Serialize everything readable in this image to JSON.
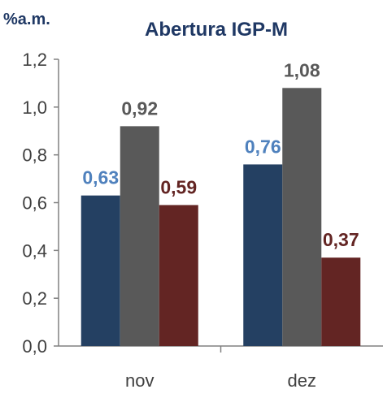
{
  "chart_data": {
    "type": "bar",
    "title": "Abertura IGP-M",
    "unit_label": "%a.m.",
    "categories": [
      "nov",
      "dez"
    ],
    "series": [
      {
        "values": [
          0.63,
          0.76
        ],
        "color": "#244062",
        "label_color": "#4f81bd"
      },
      {
        "values": [
          0.92,
          1.08
        ],
        "color": "#595959",
        "label_color": "#595959"
      },
      {
        "values": [
          0.59,
          0.37
        ],
        "color": "#632523",
        "label_color": "#632523"
      }
    ],
    "data_labels": [
      [
        "0,63",
        "0,92",
        "0,59"
      ],
      [
        "0,76",
        "1,08",
        "0,37"
      ]
    ],
    "ylim": [
      0,
      1.2
    ],
    "yticks": [
      0.0,
      0.2,
      0.4,
      0.6,
      0.8,
      1.0,
      1.2
    ],
    "ytick_labels": [
      "0,0",
      "0,2",
      "0,4",
      "0,6",
      "0,8",
      "1,0",
      "1,2"
    ],
    "grid": false,
    "legend": "none"
  }
}
